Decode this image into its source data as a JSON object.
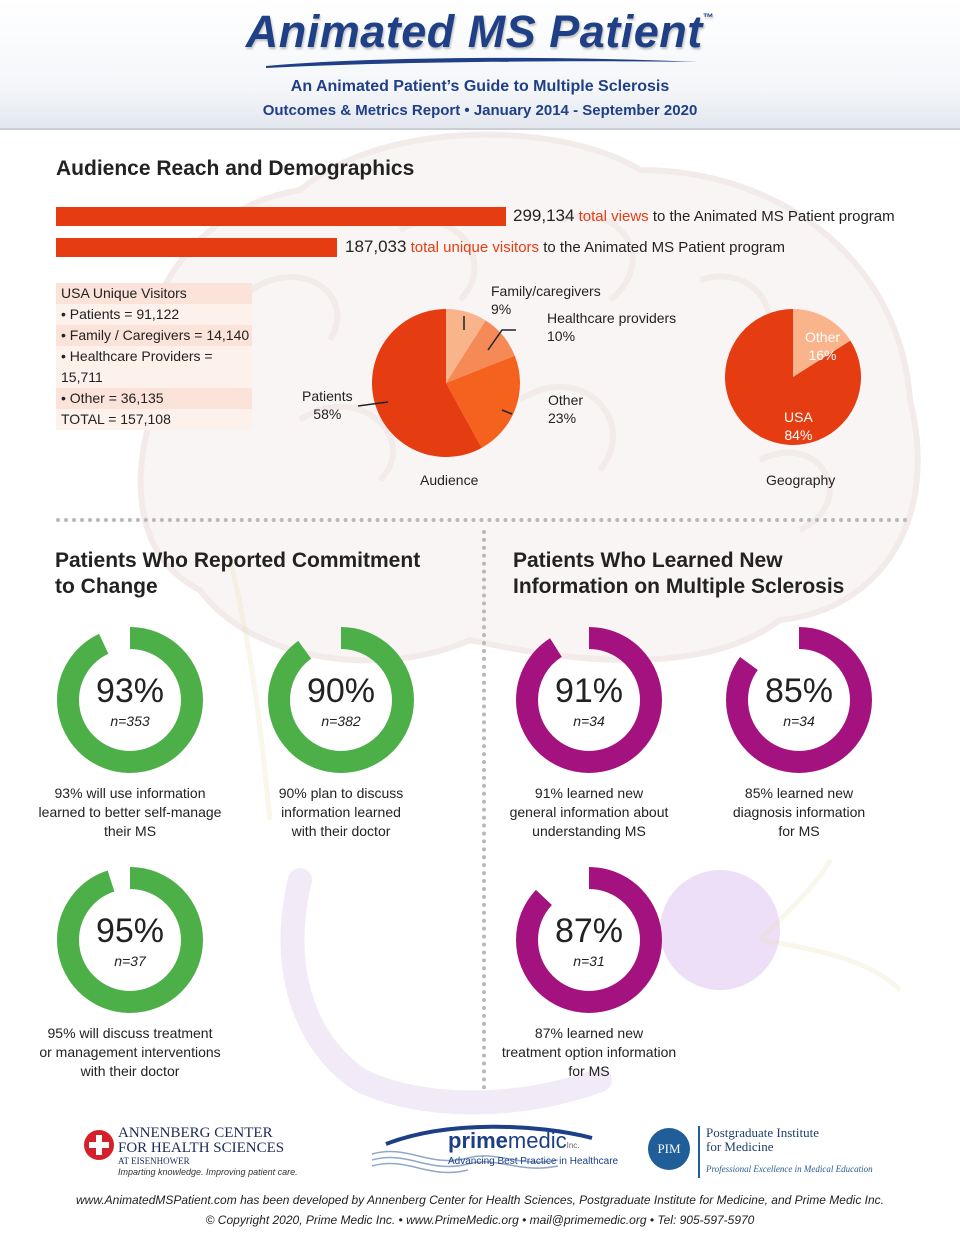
{
  "header": {
    "title": "Animated MS Patient",
    "trademark": "™",
    "subtitle": "An Animated Patient’s Guide to Multiple Sclerosis",
    "report_line": "Outcomes & Metrics Report • January 2014 - September 2020"
  },
  "reach": {
    "title": "Audience Reach and Demographics",
    "views": {
      "value": "299,134",
      "highlight": "total views",
      "rest": "to the Animated MS Patient program"
    },
    "visitors": {
      "value": "187,033",
      "highlight": "total unique visitors",
      "rest": "to the Animated MS Patient program"
    },
    "usa_box": {
      "title": "USA Unique Visitors",
      "rows": [
        "• Patients = 91,122",
        "• Family / Caregivers = 14,140",
        "• Healthcare Providers = 15,711",
        "• Other = 36,135"
      ],
      "total": "TOTAL = 157,108"
    }
  },
  "commitment": {
    "title_line1": "Patients Who Reported Commitment",
    "title_line2": "to Change",
    "rings": [
      {
        "pct": "93%",
        "n": "n=353",
        "desc": [
          "93% will use information",
          "learned to better self-manage",
          "their MS"
        ]
      },
      {
        "pct": "90%",
        "n": "n=382",
        "desc": [
          "90% plan to discuss",
          "information learned",
          "with their doctor"
        ]
      },
      {
        "pct": "95%",
        "n": "n=37",
        "desc": [
          "95% will discuss treatment",
          "or management interventions",
          "with their doctor"
        ]
      }
    ]
  },
  "learned": {
    "title_line1": "Patients Who Learned New",
    "title_line2": "Information on Multiple Sclerosis",
    "rings": [
      {
        "pct": "91%",
        "n": "n=34",
        "desc": [
          "91% learned new",
          "general information about",
          "understanding MS"
        ]
      },
      {
        "pct": "85%",
        "n": "n=34",
        "desc": [
          "85% learned new",
          "diagnosis information",
          "for MS"
        ]
      },
      {
        "pct": "87%",
        "n": "n=31",
        "desc": [
          "87% learned new",
          "treatment option information",
          "for MS"
        ]
      }
    ]
  },
  "footer": {
    "annenberg_line1": "ANNENBERG CENTER",
    "annenberg_line2": "FOR HEALTH SCIENCES",
    "annenberg_sub": "AT EISENHOWER",
    "annenberg_tag": "Imparting knowledge. Improving patient care.",
    "pm_word1": "prime",
    "pm_word2": "medic",
    "pm_inc": "Inc.",
    "pm_tag": "Advancing Best Practice in Healthcare",
    "pim_abbr": "PIM",
    "pim_line1": "Postgraduate Institute",
    "pim_line2": "for Medicine",
    "pim_tag": "Professional Excellence in Medical Education",
    "credit_line1": "www.AnimatedMSPatient.com has been developed by Annenberg Center for Health Sciences, Postgraduate Institute for Medicine, and Prime Medic Inc.",
    "credit_line2": "© Copyright 2020, Prime Medic Inc. • www.PrimeMedic.org • mail@primemedic.org • Tel: 905-597-5970"
  },
  "colors": {
    "bar": "#e63c12",
    "green": "#4caf47",
    "purple": "#a3127f",
    "header_blue": "#1f3f86"
  },
  "chart_data": [
    {
      "type": "bar",
      "categories": [
        "total views",
        "total unique visitors"
      ],
      "values": [
        299134,
        187033
      ]
    },
    {
      "type": "pie",
      "title": "Audience",
      "categories": [
        "Patients",
        "Family/caregivers",
        "Healthcare providers",
        "Other"
      ],
      "values": [
        58,
        9,
        10,
        23
      ],
      "labels": [
        "58%",
        "9%",
        "10%",
        "23%"
      ],
      "colors": [
        "#e63c12",
        "#f9b48c",
        "#f68a56",
        "#f4621e"
      ]
    },
    {
      "type": "pie",
      "title": "Geography",
      "categories": [
        "USA",
        "Other"
      ],
      "values": [
        84,
        16
      ],
      "labels": [
        "84%",
        "16%"
      ],
      "colors": [
        "#e63c12",
        "#f9b48c"
      ]
    },
    {
      "type": "donut",
      "title": "Patients Who Reported Commitment to Change",
      "categories": [
        "93%",
        "90%",
        "95%"
      ],
      "values": [
        93,
        90,
        95
      ]
    },
    {
      "type": "donut",
      "title": "Patients Who Learned New Information on Multiple Sclerosis",
      "categories": [
        "91%",
        "85%",
        "87%"
      ],
      "values": [
        91,
        85,
        87
      ]
    }
  ]
}
